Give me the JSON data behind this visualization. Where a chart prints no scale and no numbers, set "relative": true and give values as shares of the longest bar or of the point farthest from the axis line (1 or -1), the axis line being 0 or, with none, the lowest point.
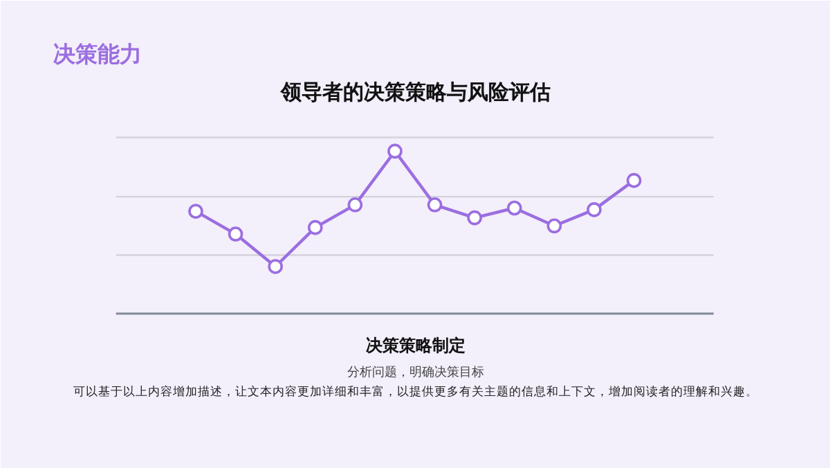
{
  "chart_data": {
    "type": "line",
    "title": "领导者的决策策略与风险评估",
    "relative": true,
    "ref_lines": [
      {
        "axis": "y",
        "value": 0.36,
        "color": "#d5d2dc"
      },
      {
        "axis": "y",
        "value": 0.72,
        "color": "#d5d2dc"
      },
      {
        "axis": "y",
        "value": 1.085,
        "color": "#d5d2dc"
      }
    ],
    "marker": "circle",
    "line_style": "solid",
    "categories": [
      null,
      null,
      null,
      null,
      null,
      null,
      null,
      null,
      null,
      null,
      null,
      null
    ],
    "series": [
      {
        "color": "#9b6ee0",
        "values": [
          0.63,
          0.49,
          0.29,
          0.53,
          0.67,
          1,
          0.67,
          0.59,
          0.65,
          0.54,
          0.64,
          0.82
        ]
      }
    ],
    "annotations": [
      "决策能力",
      "决策策略制定",
      "分析问题，明确决策目标",
      "可以基于以上内容增加描述，让文本内容更加详细和丰富，以提供更多有关主题的信息和上下文，增加阅读者的理解和兴趣。"
    ]
  }
}
